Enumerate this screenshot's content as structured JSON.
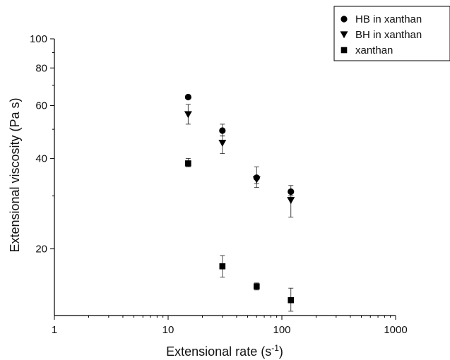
{
  "chart_data": {
    "type": "scatter",
    "title": "",
    "xlabel": "Extensional rate (s",
    "xlabel_sup": "-1",
    "xlabel_suffix": ")",
    "ylabel": "Extensional viscosity (Pa s)",
    "xscale": "log",
    "yscale": "log",
    "xlim": [
      1,
      1000
    ],
    "ylim": [
      12,
      100
    ],
    "x_ticks": [
      1,
      10,
      100,
      1000
    ],
    "x_tick_labels": [
      "1",
      "10",
      "100",
      "1000"
    ],
    "y_ticks": [
      20,
      40,
      60,
      80,
      100
    ],
    "y_tick_labels": [
      "20",
      "40",
      "60",
      "80",
      "100"
    ],
    "grid": false,
    "legend_position": "top-right",
    "series": [
      {
        "name": "HB in xanthan",
        "marker": "circle",
        "color": "#000000",
        "x": [
          15,
          30,
          60,
          120
        ],
        "y": [
          64,
          49.5,
          34.5,
          31
        ],
        "yerr_low": [
          64,
          47.5,
          33,
          30
        ],
        "yerr_high": [
          64,
          52,
          37.5,
          32.5
        ]
      },
      {
        "name": "BH in xanthan",
        "marker": "triangle-down",
        "color": "#000000",
        "x": [
          15,
          30,
          60,
          120
        ],
        "y": [
          56,
          45,
          34,
          29
        ],
        "yerr_low": [
          52,
          41.5,
          32,
          25.5
        ],
        "yerr_high": [
          60.5,
          47.5,
          35,
          30
        ]
      },
      {
        "name": "xanthan",
        "marker": "square",
        "color": "#000000",
        "x": [
          15,
          30,
          60,
          120
        ],
        "y": [
          38.5,
          17.5,
          15,
          13.5
        ],
        "yerr_low": [
          37.5,
          16.1,
          14.6,
          12.4
        ],
        "yerr_high": [
          40,
          19,
          15.4,
          14.8
        ]
      }
    ]
  }
}
